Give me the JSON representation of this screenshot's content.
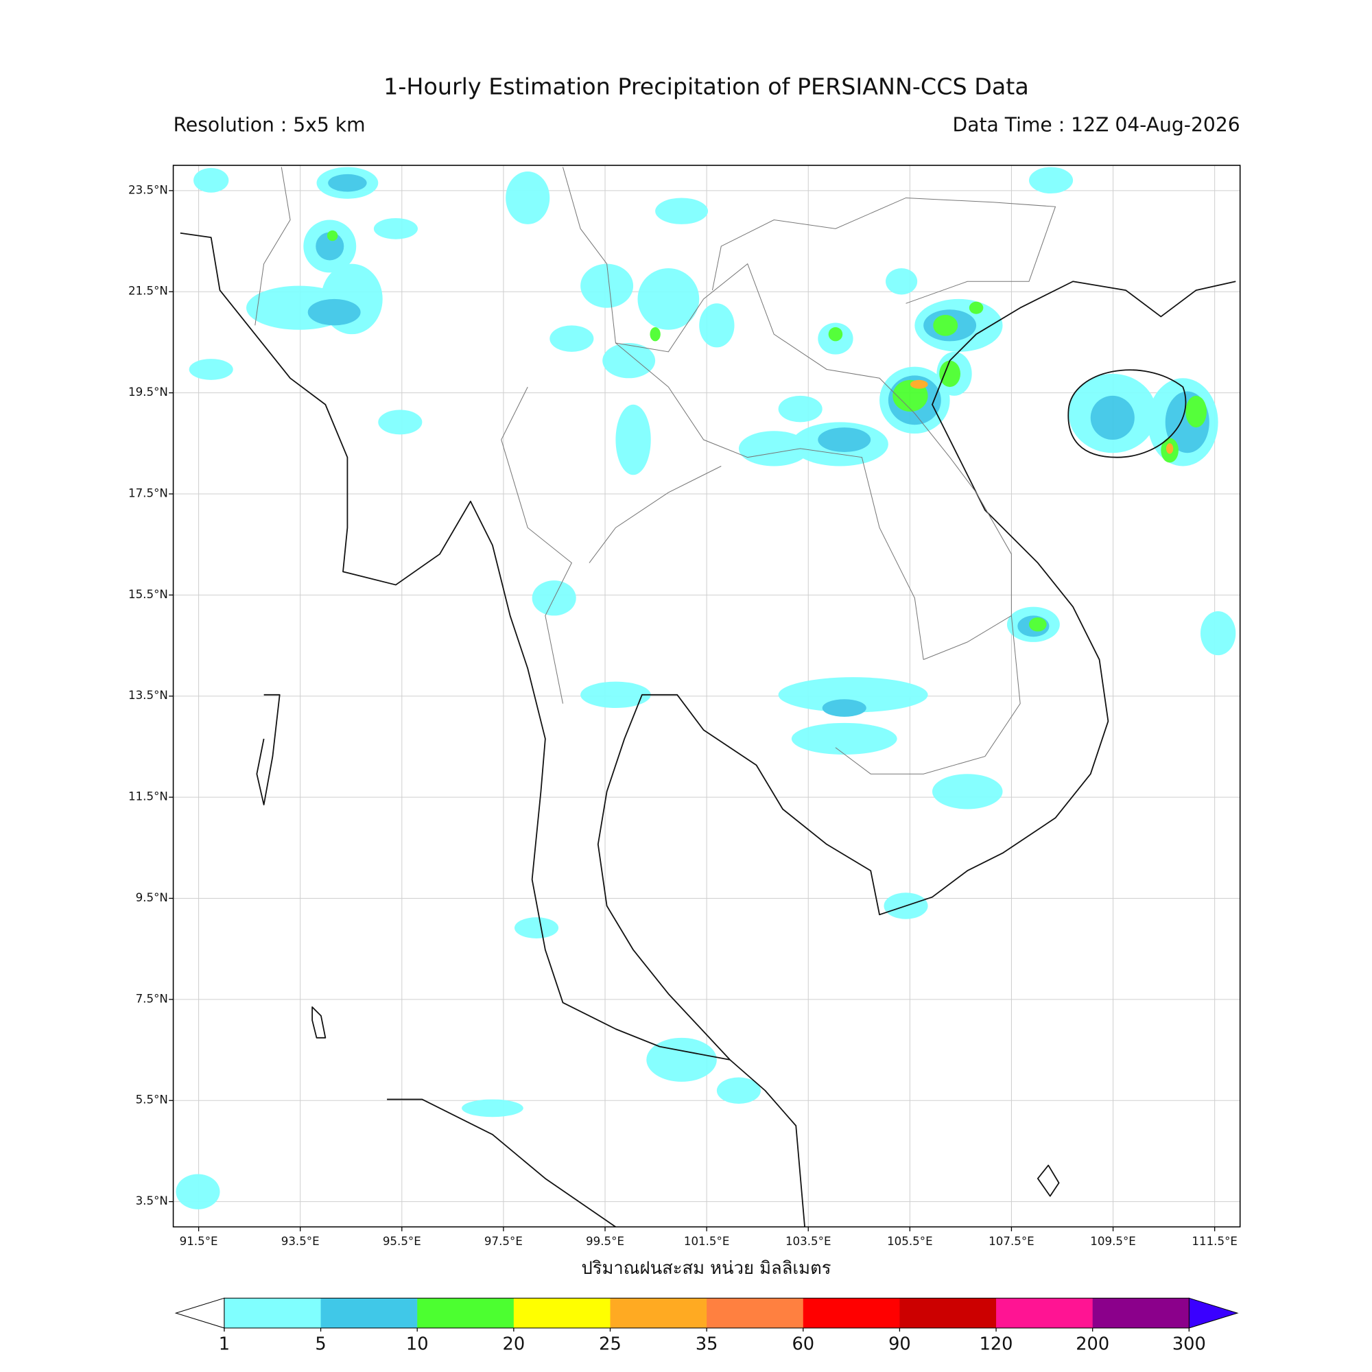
{
  "title": "1-Hourly Estimation Precipitation of PERSIANN-CCS Data",
  "resolution": "Resolution : 5x5 km",
  "data_time": "Data Time : 12Z 04-Aug-2026",
  "xlabel": "ปริมาณฝนสะสม หน่วย มิลลิเมตร",
  "xlim": [
    91,
    112
  ],
  "ylim": [
    3,
    24
  ],
  "xticks": [
    {
      "value": 91.5,
      "label": "91.5°E"
    },
    {
      "value": 93.5,
      "label": "93.5°E"
    },
    {
      "value": 95.5,
      "label": "95.5°E"
    },
    {
      "value": 97.5,
      "label": "97.5°E"
    },
    {
      "value": 99.5,
      "label": "99.5°E"
    },
    {
      "value": 101.5,
      "label": "101.5°E"
    },
    {
      "value": 103.5,
      "label": "103.5°E"
    },
    {
      "value": 105.5,
      "label": "105.5°E"
    },
    {
      "value": 107.5,
      "label": "107.5°E"
    },
    {
      "value": 109.5,
      "label": "109.5°E"
    },
    {
      "value": 111.5,
      "label": "111.5°E"
    }
  ],
  "yticks": [
    {
      "value": 3.5,
      "label": "3.5°N"
    },
    {
      "value": 5.5,
      "label": "5.5°N"
    },
    {
      "value": 7.5,
      "label": "7.5°N"
    },
    {
      "value": 9.5,
      "label": "9.5°N"
    },
    {
      "value": 11.5,
      "label": "11.5°N"
    },
    {
      "value": 13.5,
      "label": "13.5°N"
    },
    {
      "value": 15.5,
      "label": "15.5°N"
    },
    {
      "value": 17.5,
      "label": "17.5°N"
    },
    {
      "value": 19.5,
      "label": "19.5°N"
    },
    {
      "value": 21.5,
      "label": "21.5°N"
    },
    {
      "value": 23.5,
      "label": "23.5°N"
    }
  ],
  "grid": true,
  "colorbar": {
    "bounds": [
      1,
      5,
      10,
      20,
      25,
      35,
      60,
      90,
      120,
      200,
      300
    ],
    "colors": [
      "#80ffff",
      "#40c8e8",
      "#4cff30",
      "#ffff00",
      "#ffaa22",
      "#ff8040",
      "#ff0000",
      "#cc0000",
      "#ff1493",
      "#8b008b"
    ],
    "under_color": "#ffffff",
    "over_color": "#3a00ff"
  }
}
